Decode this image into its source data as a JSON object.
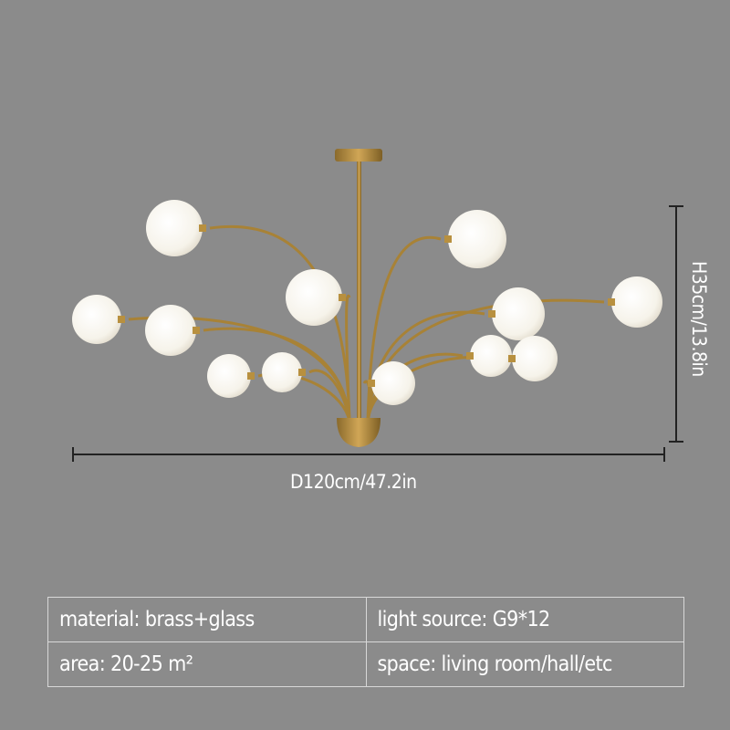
{
  "product": {
    "type": "chandelier",
    "lights": 12,
    "colors": {
      "background": "#8b8b8b",
      "brass": "#b8903f",
      "glass": "#fbfaf6"
    }
  },
  "dimensions": {
    "diameter_label": "D120cm/47.2in",
    "height_label": "H35cm/13.8in"
  },
  "specs": {
    "rows": [
      [
        "material: brass+glass",
        "light source: G9*12"
      ],
      [
        "area: 20-25 m²",
        "space: living room/hall/etc"
      ]
    ]
  }
}
